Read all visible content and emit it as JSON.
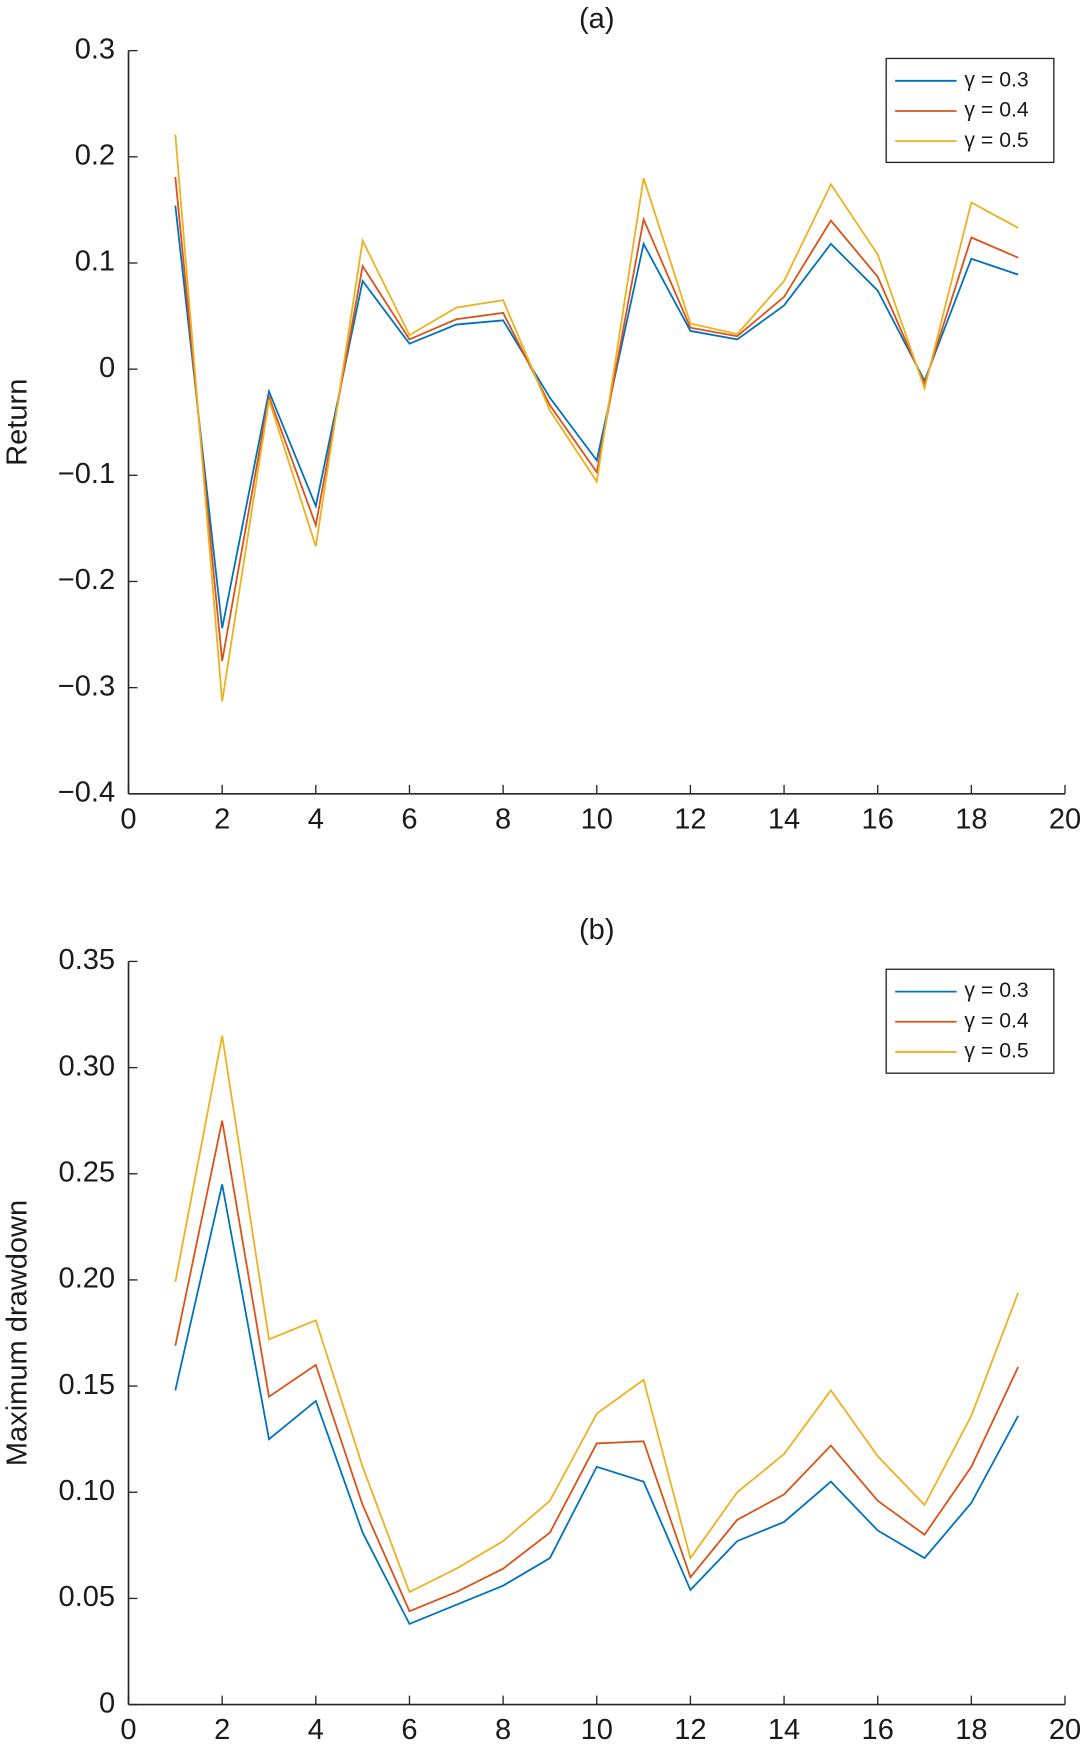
{
  "chart_data": [
    {
      "type": "line",
      "title": "(a)",
      "ylabel": "Return",
      "x": [
        1,
        2,
        3,
        4,
        5,
        6,
        7,
        8,
        9,
        10,
        11,
        12,
        13,
        14,
        15,
        16,
        17,
        18,
        19
      ],
      "series": [
        {
          "name": "γ = 0.3",
          "color": "#0072bd",
          "values": [
            0.154,
            -0.244,
            -0.021,
            -0.129,
            0.083,
            0.024,
            0.042,
            0.046,
            -0.027,
            -0.086,
            0.118,
            0.036,
            0.028,
            0.06,
            0.118,
            0.074,
            -0.011,
            0.104,
            0.089
          ]
        },
        {
          "name": "γ = 0.4",
          "color": "#d95319",
          "values": [
            0.181,
            -0.275,
            -0.026,
            -0.147,
            0.097,
            0.028,
            0.047,
            0.053,
            -0.034,
            -0.097,
            0.141,
            0.039,
            0.031,
            0.068,
            0.14,
            0.087,
            -0.014,
            0.124,
            0.105
          ]
        },
        {
          "name": "γ = 0.5",
          "color": "#edb120",
          "values": [
            0.221,
            -0.313,
            -0.029,
            -0.167,
            0.121,
            0.032,
            0.058,
            0.065,
            -0.039,
            -0.106,
            0.18,
            0.043,
            0.033,
            0.083,
            0.174,
            0.108,
            -0.018,
            0.157,
            0.133
          ]
        }
      ],
      "xlim": [
        0,
        20
      ],
      "xticks": [
        0,
        2,
        4,
        6,
        8,
        10,
        12,
        14,
        16,
        18,
        20
      ],
      "ylim": [
        -0.4,
        0.3
      ],
      "yticks": [
        {
          "value": -0.4,
          "label": "−0.4"
        },
        {
          "value": -0.3,
          "label": "−0.3"
        },
        {
          "value": -0.2,
          "label": "−0.2"
        },
        {
          "value": -0.1,
          "label": "−0.1"
        },
        0,
        0.1,
        0.2,
        0.3
      ],
      "legend": "upper right"
    },
    {
      "type": "line",
      "title": "(b)",
      "ylabel": "Maximum drawdown",
      "x": [
        1,
        2,
        3,
        4,
        5,
        6,
        7,
        8,
        9,
        10,
        11,
        12,
        13,
        14,
        15,
        16,
        17,
        18,
        19
      ],
      "series": [
        {
          "name": "γ = 0.3",
          "color": "#0072bd",
          "values": [
            0.148,
            0.245,
            0.125,
            0.143,
            0.081,
            0.038,
            0.047,
            0.056,
            0.069,
            0.112,
            0.105,
            0.054,
            0.077,
            0.086,
            0.105,
            0.082,
            0.069,
            0.095,
            0.136
          ]
        },
        {
          "name": "γ = 0.4",
          "color": "#d95319",
          "values": [
            0.169,
            0.275,
            0.145,
            0.16,
            0.094,
            0.044,
            0.053,
            0.064,
            0.081,
            0.123,
            0.124,
            0.06,
            0.087,
            0.099,
            0.122,
            0.096,
            0.08,
            0.112,
            0.159
          ]
        },
        {
          "name": "γ = 0.5",
          "color": "#edb120",
          "values": [
            0.199,
            0.315,
            0.172,
            0.181,
            0.112,
            0.053,
            0.064,
            0.077,
            0.096,
            0.137,
            0.153,
            0.069,
            0.1,
            0.118,
            0.148,
            0.117,
            0.094,
            0.136,
            0.194
          ]
        }
      ],
      "xlim": [
        0,
        20
      ],
      "xticks": [
        0,
        2,
        4,
        6,
        8,
        10,
        12,
        14,
        16,
        18,
        20
      ],
      "ylim": [
        0,
        0.35
      ],
      "yticks": [
        0,
        0.05,
        {
          "value": 0.1,
          "label": "0.10"
        },
        0.15,
        {
          "value": 0.2,
          "label": "0.20"
        },
        0.25,
        {
          "value": 0.3,
          "label": "0.30"
        },
        0.35
      ],
      "legend": "upper right"
    }
  ]
}
